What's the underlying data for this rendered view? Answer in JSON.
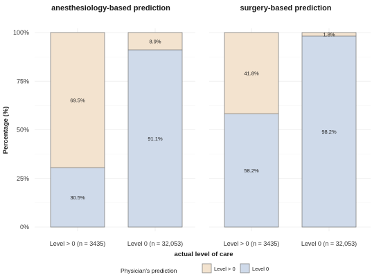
{
  "chart_data": {
    "type": "bar",
    "stacked": true,
    "ylabel": "Percentage (%)",
    "xlabel": "actual level of care",
    "ylim": [
      0,
      100
    ],
    "yticks": [
      "0%",
      "25%",
      "50%",
      "75%",
      "100%"
    ],
    "grid": true,
    "legend": {
      "title": "Physician's prediction",
      "position": "bottom",
      "entries": [
        {
          "label": "Level > 0",
          "color": "#f3e3cf"
        },
        {
          "label": "Level 0",
          "color": "#cfdaea"
        }
      ]
    },
    "facets": [
      {
        "title": "anesthesiology-based prediction",
        "categories": [
          "Level > 0 (n = 3435)",
          "Level 0 (n = 32,053)"
        ],
        "series": [
          {
            "name": "Level 0",
            "values": [
              30.5,
              91.1
            ],
            "labels": [
              "30.5%",
              "91.1%"
            ],
            "color": "#cfdaea"
          },
          {
            "name": "Level > 0",
            "values": [
              69.5,
              8.9
            ],
            "labels": [
              "69.5%",
              "8.9%"
            ],
            "color": "#f3e3cf"
          }
        ]
      },
      {
        "title": "surgery-based prediction",
        "categories": [
          "Level > 0 (n = 3435)",
          "Level 0 (n = 32,053)"
        ],
        "series": [
          {
            "name": "Level 0",
            "values": [
              58.2,
              98.2
            ],
            "labels": [
              "58.2%",
              "98.2%"
            ],
            "color": "#cfdaea"
          },
          {
            "name": "Level > 0",
            "values": [
              41.8,
              1.8
            ],
            "labels": [
              "41.8%",
              "1.8%"
            ],
            "color": "#f3e3cf"
          }
        ]
      }
    ]
  }
}
